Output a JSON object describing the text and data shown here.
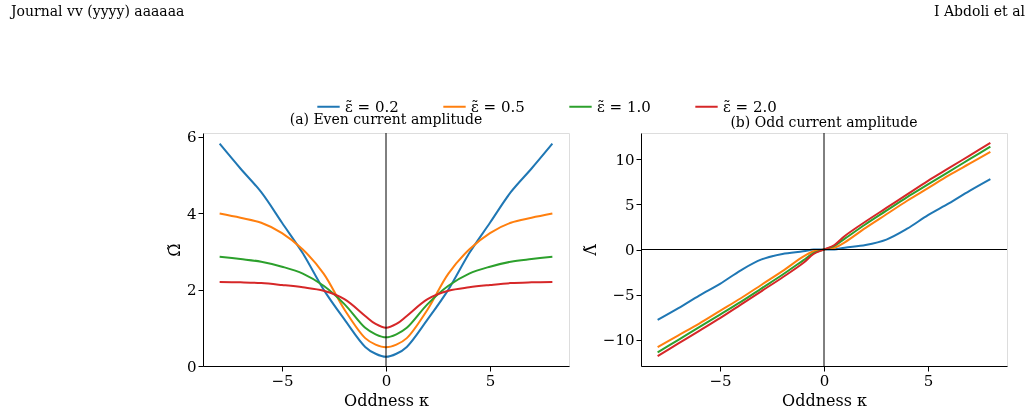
{
  "chart_data": [
    {
      "type": "line",
      "title": "(a) Even current amplitude",
      "xlabel": "Oddness κ",
      "ylabel": "Ω̃",
      "annotations": [
        "Journal vv (yyyy) aaaaaa",
        "I Abdoli et al"
      ],
      "x": [
        -8,
        -7,
        -6,
        -5,
        -4,
        -3,
        -2,
        -1,
        -0.5,
        0,
        0.5,
        1,
        2,
        3,
        4,
        5,
        6,
        7,
        8
      ],
      "series": [
        {
          "name": "ε̃ = 0.2",
          "color": "#1f77b4",
          "values": [
            5.82,
            5.17,
            4.55,
            3.75,
            2.95,
            2.0,
            1.22,
            0.5,
            0.32,
            0.24,
            0.32,
            0.5,
            1.22,
            2.0,
            2.95,
            3.75,
            4.55,
            5.17,
            5.82
          ]
        },
        {
          "name": "ε̃ = 0.5",
          "color": "#ff7f0e",
          "values": [
            3.99,
            3.88,
            3.75,
            3.48,
            3.05,
            2.42,
            1.48,
            0.73,
            0.56,
            0.49,
            0.56,
            0.73,
            1.48,
            2.42,
            3.05,
            3.48,
            3.75,
            3.88,
            3.99
          ]
        },
        {
          "name": "ε̃ = 1.0",
          "color": "#2ca02c",
          "values": [
            2.86,
            2.8,
            2.73,
            2.6,
            2.42,
            2.1,
            1.62,
            1.0,
            0.83,
            0.75,
            0.83,
            1.0,
            1.62,
            2.1,
            2.42,
            2.6,
            2.73,
            2.8,
            2.86
          ]
        },
        {
          "name": "ε̃ = 2.0",
          "color": "#d62728",
          "values": [
            2.2,
            2.19,
            2.17,
            2.12,
            2.06,
            1.97,
            1.75,
            1.31,
            1.1,
            1.0,
            1.1,
            1.31,
            1.75,
            1.97,
            2.06,
            2.12,
            2.17,
            2.19,
            2.2
          ]
        }
      ],
      "xlim": [
        -8.8,
        8.8
      ],
      "xticks": [
        -5,
        0,
        5
      ],
      "ylim": [
        0,
        6.1
      ],
      "yticks": [
        0,
        2,
        4,
        6
      ],
      "ref_lines": [
        {
          "axis": "x",
          "value": 0,
          "color": "#000000"
        }
      ],
      "legend": "top",
      "grid": false
    },
    {
      "type": "line",
      "title": "(b) Odd current amplitude",
      "xlabel": "Oddness κ",
      "ylabel": "Λ̃",
      "x": [
        -8,
        -7,
        -6,
        -5,
        -4,
        -3,
        -2,
        -1,
        -0.5,
        0,
        0.5,
        1,
        2,
        3,
        4,
        5,
        6,
        7,
        8
      ],
      "series": [
        {
          "name": "ε̃ = 0.2",
          "color": "#1f77b4",
          "values": [
            -7.8,
            -6.5,
            -5.1,
            -3.8,
            -2.3,
            -1.1,
            -0.5,
            -0.2,
            0,
            0,
            0,
            0.2,
            0.5,
            1.1,
            2.3,
            3.8,
            5.1,
            6.5,
            7.8
          ]
        },
        {
          "name": "ε̃ = 0.5",
          "color": "#ff7f0e",
          "values": [
            -10.8,
            -9.5,
            -8.2,
            -6.8,
            -5.4,
            -3.9,
            -2.4,
            -0.8,
            -0.2,
            0,
            0.2,
            0.8,
            2.4,
            3.9,
            5.4,
            6.8,
            8.2,
            9.5,
            10.8
          ]
        },
        {
          "name": "ε̃ = 1.0",
          "color": "#2ca02c",
          "values": [
            -11.4,
            -10.0,
            -8.6,
            -7.2,
            -5.8,
            -4.3,
            -2.8,
            -1.2,
            -0.4,
            0,
            0.4,
            1.2,
            2.8,
            4.3,
            5.8,
            7.2,
            8.6,
            10.0,
            11.4
          ]
        },
        {
          "name": "ε̃ = 2.0",
          "color": "#d62728",
          "values": [
            -11.8,
            -10.4,
            -9.0,
            -7.6,
            -6.1,
            -4.6,
            -3.1,
            -1.5,
            -0.5,
            0,
            0.5,
            1.5,
            3.1,
            4.6,
            6.1,
            7.6,
            9.0,
            10.4,
            11.8
          ]
        }
      ],
      "xlim": [
        -8.8,
        8.8
      ],
      "xticks": [
        -5,
        0,
        5
      ],
      "ylim": [
        -12.9,
        12.9
      ],
      "yticks": [
        -10,
        -5,
        0,
        5,
        10
      ],
      "ref_lines": [
        {
          "axis": "x",
          "value": 0,
          "color": "#000000"
        },
        {
          "axis": "y",
          "value": 0,
          "color": "#000000"
        }
      ],
      "grid": false
    }
  ]
}
